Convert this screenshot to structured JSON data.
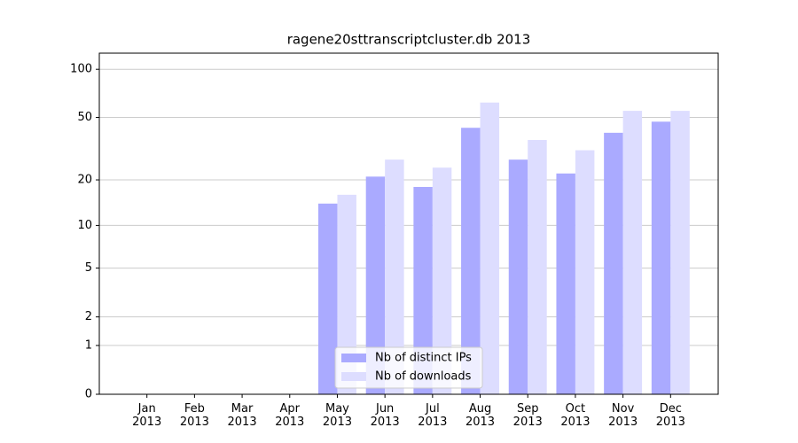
{
  "chart_data": {
    "type": "bar",
    "title": "ragene20sttranscriptcluster.db 2013",
    "yscale": "log1p",
    "categories": [
      "Jan\n2013",
      "Feb\n2013",
      "Mar\n2013",
      "Apr\n2013",
      "May\n2013",
      "Jun\n2013",
      "Jul\n2013",
      "Aug\n2013",
      "Sep\n2013",
      "Oct\n2013",
      "Nov\n2013",
      "Dec\n2013"
    ],
    "series": [
      {
        "name": "Nb of distinct IPs",
        "color": "#aaaaff",
        "values": [
          0,
          0,
          0,
          0,
          14,
          21,
          18,
          43,
          27,
          22,
          40,
          47
        ]
      },
      {
        "name": "Nb of downloads",
        "color": "#ddddff",
        "values": [
          0,
          0,
          0,
          0,
          16,
          27,
          24,
          62,
          36,
          31,
          55,
          55
        ]
      }
    ],
    "ylim": [
      0,
      126
    ],
    "yticks": [
      0,
      1,
      2,
      5,
      10,
      20,
      50,
      100
    ],
    "grid": true,
    "legend": "lower center"
  }
}
